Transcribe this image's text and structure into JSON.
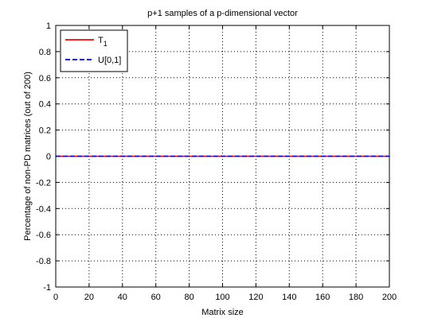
{
  "chart_data": {
    "type": "line",
    "title": "p+1 samples of a p-dimensional vector",
    "xlabel": "Matrix size",
    "ylabel": "Percentage of non-PD matrices (out of 200)",
    "xlim": [
      0,
      200
    ],
    "ylim": [
      -1,
      1
    ],
    "xticks": [
      0,
      20,
      40,
      60,
      80,
      100,
      120,
      140,
      160,
      180,
      200
    ],
    "yticks": [
      -1,
      -0.8,
      -0.6,
      -0.4,
      -0.2,
      0,
      0.2,
      0.4,
      0.6,
      0.8,
      1
    ],
    "xtick_labels": [
      "0",
      "20",
      "40",
      "60",
      "80",
      "100",
      "120",
      "140",
      "160",
      "180",
      "200"
    ],
    "ytick_labels": [
      "-1",
      "-0.8",
      "-0.6",
      "-0.4",
      "-0.2",
      "0",
      "0.2",
      "0.4",
      "0.6",
      "0.8",
      "1"
    ],
    "grid": true,
    "legend_position": "top-left",
    "series": [
      {
        "name": "T",
        "name_subscript": "1",
        "color": "#ff0000",
        "line_style": "solid",
        "x": [
          0,
          20,
          40,
          60,
          80,
          100,
          120,
          140,
          160,
          180,
          200
        ],
        "y": [
          0,
          0,
          0,
          0,
          0,
          0,
          0,
          0,
          0,
          0,
          0
        ]
      },
      {
        "name": "U[0,1]",
        "color": "#0000cc",
        "line_style": "dashed",
        "x": [
          0,
          20,
          40,
          60,
          80,
          100,
          120,
          140,
          160,
          180,
          200
        ],
        "y": [
          0,
          0,
          0,
          0,
          0,
          0,
          0,
          0,
          0,
          0,
          0
        ]
      }
    ]
  }
}
